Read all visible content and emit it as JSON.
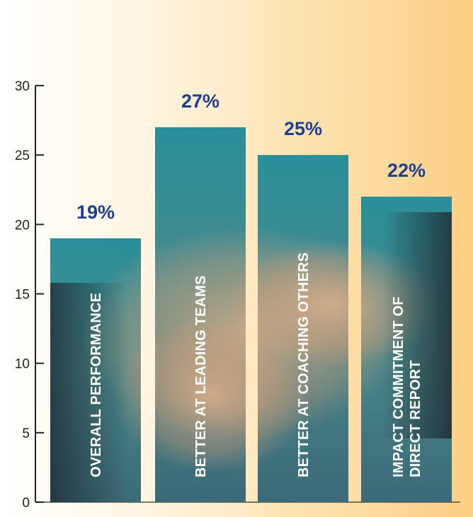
{
  "chart_data": {
    "type": "bar",
    "categories": [
      "OVERALL PERFORMANCE",
      "BETTER AT LEADING TEAMS",
      "BETTER AT COACHING OTHERS",
      "IMPACT COMMITMENT OF DIRECT REPORT"
    ],
    "category_lines": [
      [
        "OVERALL PERFORMANCE"
      ],
      [
        "BETTER AT LEADING TEAMS"
      ],
      [
        "BETTER AT COACHING OTHERS"
      ],
      [
        "IMPACT COMMITMENT OF",
        "DIRECT REPORT"
      ]
    ],
    "values": [
      19,
      27,
      25,
      22
    ],
    "value_labels": [
      "19%",
      "27%",
      "25%",
      "22%"
    ],
    "ylim": [
      0,
      30
    ],
    "yticks": [
      0,
      5,
      10,
      15,
      20,
      25,
      30
    ],
    "ytick_labels": [
      "0",
      "5",
      "10",
      "15",
      "20",
      "25",
      "30"
    ],
    "grid": false,
    "colors": {
      "value_label": "#1d3f8e",
      "bar_top": "#2a8e9a",
      "bar_bottom": "#3b6a78",
      "axis": "#222222"
    }
  }
}
